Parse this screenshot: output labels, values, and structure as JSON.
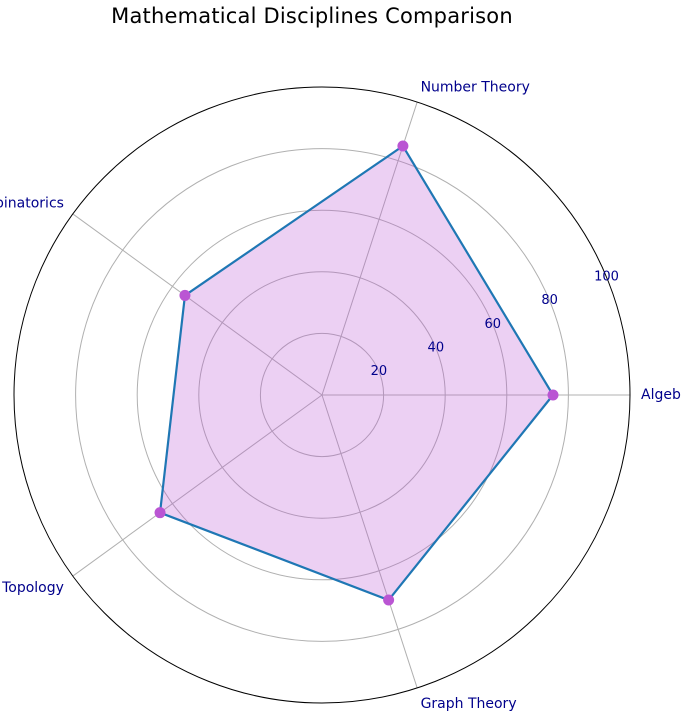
{
  "chart_data": {
    "type": "radar",
    "title": "Mathematical Disciplines Comparison",
    "categories": [
      "Algebra",
      "Number Theory",
      "Combinatorics",
      "Topology",
      "Graph Theory"
    ],
    "series": [
      {
        "values": [
          75,
          85,
          55,
          65,
          70
        ]
      }
    ],
    "radial_ticks": [
      20,
      40,
      60,
      80,
      100
    ],
    "rlim": [
      0,
      100
    ],
    "grid": true,
    "colors": {
      "line": "#1f77b4",
      "fill": "#ba55d3",
      "marker": "#ba55d3",
      "label": "#00008b",
      "grid": "#b0b0b0",
      "frame": "#000000"
    }
  }
}
